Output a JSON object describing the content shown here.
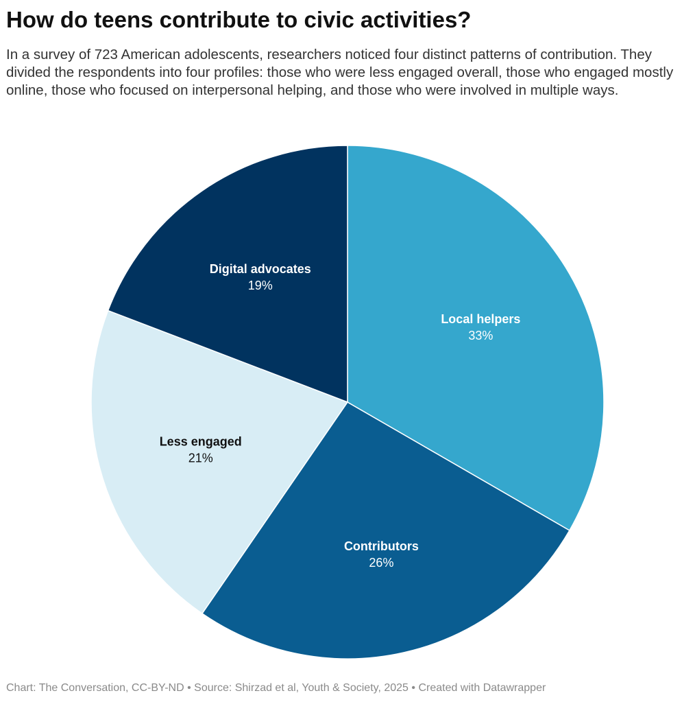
{
  "header": {
    "title": "How do teens contribute to civic activities?",
    "description": "In a survey of 723 American adolescents, researchers noticed four distinct patterns of contribution. They divided the respondents into four profiles: those who were less engaged overall, those who engaged mostly online, those who focused on interpersonal helping, and those who were involved in multiple ways."
  },
  "chart_data": {
    "type": "pie",
    "title": "How do teens contribute to civic activities?",
    "slices": [
      {
        "label": "Local helpers",
        "value": 33,
        "value_label": "33%",
        "color": "#35a7cd",
        "text_color": "#ffffff"
      },
      {
        "label": "Contributors",
        "value": 26,
        "value_label": "26%",
        "color": "#0a5d91",
        "text_color": "#ffffff"
      },
      {
        "label": "Less engaged",
        "value": 21,
        "value_label": "21%",
        "color": "#d8edf5",
        "text_color": "#111111"
      },
      {
        "label": "Digital advocates",
        "value": 19,
        "value_label": "19%",
        "color": "#01335f",
        "text_color": "#ffffff"
      }
    ],
    "start": "12 o'clock",
    "direction": "clockwise",
    "slice_border_color": "#ffffff"
  },
  "footer": {
    "credit": "Chart: The Conversation, CC-BY-ND • Source: Shirzad et al, Youth & Society, 2025 • Created with Datawrapper"
  }
}
